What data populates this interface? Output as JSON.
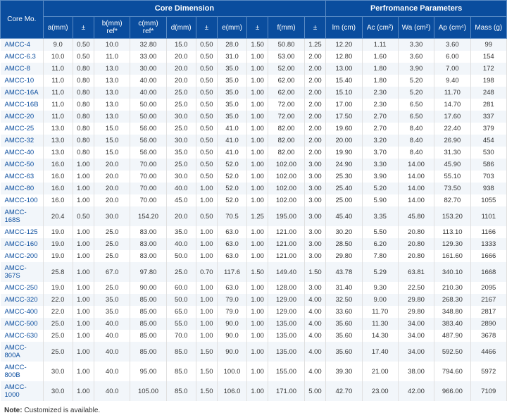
{
  "headers": {
    "core_mo": "Core Mo.",
    "group_dim": "Core Dimension",
    "group_perf": "Perfromance Parameters",
    "a": "a(mm)",
    "pm1": "±",
    "b": "b(mm) ref*",
    "c": "c(mm) ref*",
    "d": "d(mm)",
    "pm2": "±",
    "e": "e(mm)",
    "pm3": "±",
    "f": "f(mm)",
    "pm4": "±",
    "lm": "lm (cm)",
    "ac": "Ac (cm²)",
    "wa": "Wa (cm²)",
    "ap": "Ap (cm⁴)",
    "mass": "Mass (g)"
  },
  "rows": [
    {
      "mo": "AMCC-4",
      "a": "9.0",
      "pa": "0.50",
      "b": "10.0",
      "c": "32.80",
      "d": "15.0",
      "pd": "0.50",
      "e": "28.0",
      "pe": "1.50",
      "f": "50.80",
      "pf": "1.25",
      "lm": "12.20",
      "ac": "1.11",
      "wa": "3.30",
      "ap": "3.60",
      "m": "99"
    },
    {
      "mo": "AMCC-6.3",
      "a": "10.0",
      "pa": "0.50",
      "b": "11.0",
      "c": "33.00",
      "d": "20.0",
      "pd": "0.50",
      "e": "31.0",
      "pe": "1.00",
      "f": "53.00",
      "pf": "2.00",
      "lm": "12.80",
      "ac": "1.60",
      "wa": "3.60",
      "ap": "6.00",
      "m": "154"
    },
    {
      "mo": "AMCC-8",
      "a": "11.0",
      "pa": "0.80",
      "b": "13.0",
      "c": "30.00",
      "d": "20.0",
      "pd": "0.50",
      "e": "35.0",
      "pe": "1.00",
      "f": "52.00",
      "pf": "2.00",
      "lm": "13.00",
      "ac": "1.80",
      "wa": "3.90",
      "ap": "7.00",
      "m": "172"
    },
    {
      "mo": "AMCC-10",
      "a": "11.0",
      "pa": "0.80",
      "b": "13.0",
      "c": "40.00",
      "d": "20.0",
      "pd": "0.50",
      "e": "35.0",
      "pe": "1.00",
      "f": "62.00",
      "pf": "2.00",
      "lm": "15.40",
      "ac": "1.80",
      "wa": "5.20",
      "ap": "9.40",
      "m": "198"
    },
    {
      "mo": "AMCC-16A",
      "a": "11.0",
      "pa": "0.80",
      "b": "13.0",
      "c": "40.00",
      "d": "25.0",
      "pd": "0.50",
      "e": "35.0",
      "pe": "1.00",
      "f": "62.00",
      "pf": "2.00",
      "lm": "15.10",
      "ac": "2.30",
      "wa": "5.20",
      "ap": "11.70",
      "m": "248"
    },
    {
      "mo": "AMCC-16B",
      "a": "11.0",
      "pa": "0.80",
      "b": "13.0",
      "c": "50.00",
      "d": "25.0",
      "pd": "0.50",
      "e": "35.0",
      "pe": "1.00",
      "f": "72.00",
      "pf": "2.00",
      "lm": "17.00",
      "ac": "2.30",
      "wa": "6.50",
      "ap": "14.70",
      "m": "281"
    },
    {
      "mo": "AMCC-20",
      "a": "11.0",
      "pa": "0.80",
      "b": "13.0",
      "c": "50.00",
      "d": "30.0",
      "pd": "0.50",
      "e": "35.0",
      "pe": "1.00",
      "f": "72.00",
      "pf": "2.00",
      "lm": "17.50",
      "ac": "2.70",
      "wa": "6.50",
      "ap": "17.60",
      "m": "337"
    },
    {
      "mo": "AMCC-25",
      "a": "13.0",
      "pa": "0.80",
      "b": "15.0",
      "c": "56.00",
      "d": "25.0",
      "pd": "0.50",
      "e": "41.0",
      "pe": "1.00",
      "f": "82.00",
      "pf": "2.00",
      "lm": "19.60",
      "ac": "2.70",
      "wa": "8.40",
      "ap": "22.40",
      "m": "379"
    },
    {
      "mo": "AMCC-32",
      "a": "13.0",
      "pa": "0.80",
      "b": "15.0",
      "c": "56.00",
      "d": "30.0",
      "pd": "0.50",
      "e": "41.0",
      "pe": "1.00",
      "f": "82.00",
      "pf": "2.00",
      "lm": "20.00",
      "ac": "3.20",
      "wa": "8.40",
      "ap": "26.90",
      "m": "454"
    },
    {
      "mo": "AMCC-40",
      "a": "13.0",
      "pa": "0.80",
      "b": "15.0",
      "c": "56.00",
      "d": "35.0",
      "pd": "0.50",
      "e": "41.0",
      "pe": "1.00",
      "f": "82.00",
      "pf": "2.00",
      "lm": "19.90",
      "ac": "3.70",
      "wa": "8.40",
      "ap": "31.30",
      "m": "530"
    },
    {
      "mo": "AMCC-50",
      "a": "16.0",
      "pa": "1.00",
      "b": "20.0",
      "c": "70.00",
      "d": "25.0",
      "pd": "0.50",
      "e": "52.0",
      "pe": "1.00",
      "f": "102.00",
      "pf": "3.00",
      "lm": "24.90",
      "ac": "3.30",
      "wa": "14.00",
      "ap": "45.90",
      "m": "586"
    },
    {
      "mo": "AMCC-63",
      "a": "16.0",
      "pa": "1.00",
      "b": "20.0",
      "c": "70.00",
      "d": "30.0",
      "pd": "0.50",
      "e": "52.0",
      "pe": "1.00",
      "f": "102.00",
      "pf": "3.00",
      "lm": "25.30",
      "ac": "3.90",
      "wa": "14.00",
      "ap": "55.10",
      "m": "703"
    },
    {
      "mo": "AMCC-80",
      "a": "16.0",
      "pa": "1.00",
      "b": "20.0",
      "c": "70.00",
      "d": "40.0",
      "pd": "1.00",
      "e": "52.0",
      "pe": "1.00",
      "f": "102.00",
      "pf": "3.00",
      "lm": "25.40",
      "ac": "5.20",
      "wa": "14.00",
      "ap": "73.50",
      "m": "938"
    },
    {
      "mo": "AMCC-100",
      "a": "16.0",
      "pa": "1.00",
      "b": "20.0",
      "c": "70.00",
      "d": "45.0",
      "pd": "1.00",
      "e": "52.0",
      "pe": "1.00",
      "f": "102.00",
      "pf": "3.00",
      "lm": "25.00",
      "ac": "5.90",
      "wa": "14.00",
      "ap": "82.70",
      "m": "1055"
    },
    {
      "mo": "AMCC-168S",
      "a": "20.4",
      "pa": "0.50",
      "b": "30.0",
      "c": "154.20",
      "d": "20.0",
      "pd": "0.50",
      "e": "70.5",
      "pe": "1.25",
      "f": "195.00",
      "pf": "3.00",
      "lm": "45.40",
      "ac": "3.35",
      "wa": "45.80",
      "ap": "153.20",
      "m": "1101"
    },
    {
      "mo": "AMCC-125",
      "a": "19.0",
      "pa": "1.00",
      "b": "25.0",
      "c": "83.00",
      "d": "35.0",
      "pd": "1.00",
      "e": "63.0",
      "pe": "1.00",
      "f": "121.00",
      "pf": "3.00",
      "lm": "30.20",
      "ac": "5.50",
      "wa": "20.80",
      "ap": "113.10",
      "m": "1166"
    },
    {
      "mo": "AMCC-160",
      "a": "19.0",
      "pa": "1.00",
      "b": "25.0",
      "c": "83.00",
      "d": "40.0",
      "pd": "1.00",
      "e": "63.0",
      "pe": "1.00",
      "f": "121.00",
      "pf": "3.00",
      "lm": "28.50",
      "ac": "6.20",
      "wa": "20.80",
      "ap": "129.30",
      "m": "1333"
    },
    {
      "mo": "AMCC-200",
      "a": "19.0",
      "pa": "1.00",
      "b": "25.0",
      "c": "83.00",
      "d": "50.0",
      "pd": "1.00",
      "e": "63.0",
      "pe": "1.00",
      "f": "121.00",
      "pf": "3.00",
      "lm": "29.80",
      "ac": "7.80",
      "wa": "20.80",
      "ap": "161.60",
      "m": "1666"
    },
    {
      "mo": "AMCC-367S",
      "a": "25.8",
      "pa": "1.00",
      "b": "67.0",
      "c": "97.80",
      "d": "25.0",
      "pd": "0.70",
      "e": "117.6",
      "pe": "1.50",
      "f": "149.40",
      "pf": "1.50",
      "lm": "43.78",
      "ac": "5.29",
      "wa": "63.81",
      "ap": "340.10",
      "m": "1668"
    },
    {
      "mo": "AMCC-250",
      "a": "19.0",
      "pa": "1.00",
      "b": "25.0",
      "c": "90.00",
      "d": "60.0",
      "pd": "1.00",
      "e": "63.0",
      "pe": "1.00",
      "f": "128.00",
      "pf": "3.00",
      "lm": "31.40",
      "ac": "9.30",
      "wa": "22.50",
      "ap": "210.30",
      "m": "2095"
    },
    {
      "mo": "AMCC-320",
      "a": "22.0",
      "pa": "1.00",
      "b": "35.0",
      "c": "85.00",
      "d": "50.0",
      "pd": "1.00",
      "e": "79.0",
      "pe": "1.00",
      "f": "129.00",
      "pf": "4.00",
      "lm": "32.50",
      "ac": "9.00",
      "wa": "29.80",
      "ap": "268.30",
      "m": "2167"
    },
    {
      "mo": "AMCC-400",
      "a": "22.0",
      "pa": "1.00",
      "b": "35.0",
      "c": "85.00",
      "d": "65.0",
      "pd": "1.00",
      "e": "79.0",
      "pe": "1.00",
      "f": "129.00",
      "pf": "4.00",
      "lm": "33.60",
      "ac": "11.70",
      "wa": "29.80",
      "ap": "348.80",
      "m": "2817"
    },
    {
      "mo": "AMCC-500",
      "a": "25.0",
      "pa": "1.00",
      "b": "40.0",
      "c": "85.00",
      "d": "55.0",
      "pd": "1.00",
      "e": "90.0",
      "pe": "1.00",
      "f": "135.00",
      "pf": "4.00",
      "lm": "35.60",
      "ac": "11.30",
      "wa": "34.00",
      "ap": "383.40",
      "m": "2890"
    },
    {
      "mo": "AMCC-630",
      "a": "25.0",
      "pa": "1.00",
      "b": "40.0",
      "c": "85.00",
      "d": "70.0",
      "pd": "1.00",
      "e": "90.0",
      "pe": "1.00",
      "f": "135.00",
      "pf": "4.00",
      "lm": "35.60",
      "ac": "14.30",
      "wa": "34.00",
      "ap": "487.90",
      "m": "3678"
    },
    {
      "mo": "AMCC-800A",
      "a": "25.0",
      "pa": "1.00",
      "b": "40.0",
      "c": "85.00",
      "d": "85.0",
      "pd": "1.50",
      "e": "90.0",
      "pe": "1.00",
      "f": "135.00",
      "pf": "4.00",
      "lm": "35.60",
      "ac": "17.40",
      "wa": "34.00",
      "ap": "592.50",
      "m": "4466"
    },
    {
      "mo": "AMCC-800B",
      "a": "30.0",
      "pa": "1.00",
      "b": "40.0",
      "c": "95.00",
      "d": "85.0",
      "pd": "1.50",
      "e": "100.0",
      "pe": "1.00",
      "f": "155.00",
      "pf": "4.00",
      "lm": "39.30",
      "ac": "21.00",
      "wa": "38.00",
      "ap": "794.60",
      "m": "5972"
    },
    {
      "mo": "AMCC-1000",
      "a": "30.0",
      "pa": "1.00",
      "b": "40.0",
      "c": "105.00",
      "d": "85.0",
      "pd": "1.50",
      "e": "106.0",
      "pe": "1.00",
      "f": "171.00",
      "pf": "5.00",
      "lm": "42.70",
      "ac": "23.00",
      "wa": "42.00",
      "ap": "966.00",
      "m": "7109"
    }
  ],
  "note_label": "Note:",
  "note_text": " Customized is available.",
  "styling": {
    "header_bg": "#0a4d9e",
    "header_text": "#ffffff",
    "row_odd_bg": "#f2f6fa",
    "row_even_bg": "#ffffff",
    "font_family": "Arial",
    "font_size_body": 10,
    "font_size_cell": 9.5
  }
}
